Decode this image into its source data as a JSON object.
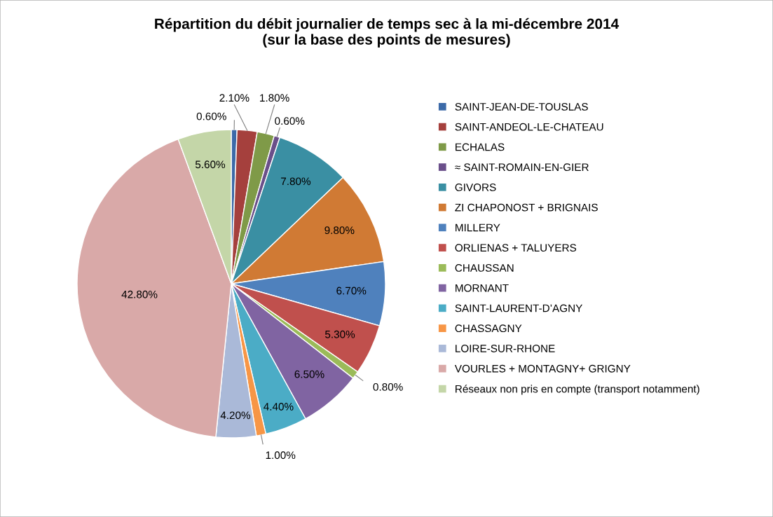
{
  "chart_data": {
    "type": "pie",
    "title": "Répartition du débit journalier de temps sec à la mi-décembre 2014\n(sur la base des points de mesures)",
    "categories": [
      "SAINT-JEAN-DE-TOUSLAS",
      "SAINT-ANDEOL-LE-CHATEAU",
      "ECHALAS",
      "≈ SAINT-ROMAIN-EN-GIER",
      "GIVORS",
      "ZI CHAPONOST + BRIGNAIS",
      "MILLERY",
      "ORLIENAS + TALUYERS",
      "CHAUSSAN",
      "MORNANT",
      "SAINT-LAURENT-D’AGNY",
      "CHASSAGNY",
      "LOIRE-SUR-RHONE",
      "VOURLES + MONTAGNY+ GRIGNY",
      "Réseaux non pris en compte (transport notamment)"
    ],
    "values": [
      0.6,
      2.1,
      1.8,
      0.6,
      7.8,
      9.8,
      6.7,
      5.3,
      0.8,
      6.5,
      4.4,
      1.0,
      4.2,
      42.8,
      5.6
    ],
    "value_labels": [
      "0.60%",
      "2.10%",
      "1.80%",
      "0.60%",
      "7.80%",
      "9.80%",
      "6.70%",
      "5.30%",
      "0.80%",
      "6.50%",
      "4.40%",
      "1.00%",
      "4.20%",
      "42.80%",
      "5.60%"
    ],
    "colors": [
      "#3c6aa8",
      "#a5403d",
      "#7f9a48",
      "#6a4f8a",
      "#3a8fa3",
      "#d07a34",
      "#4f81bd",
      "#c0504d",
      "#9bbb59",
      "#8064a2",
      "#4bacc6",
      "#f79646",
      "#aab9d8",
      "#d9a9a8",
      "#c4d6a8"
    ],
    "legend": "right"
  }
}
